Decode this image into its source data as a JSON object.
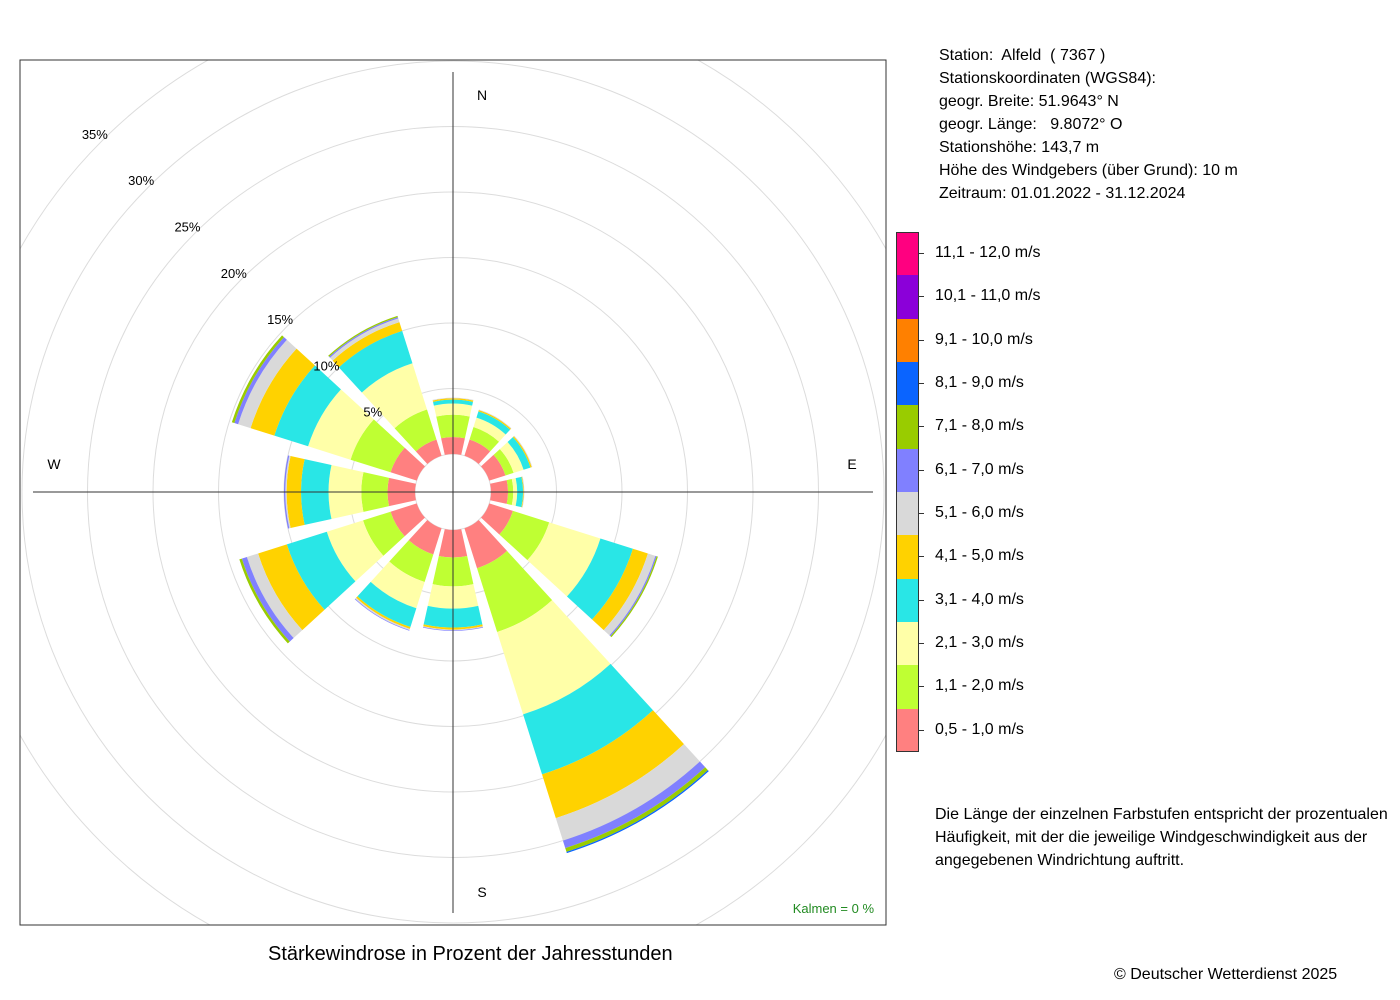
{
  "station_info": [
    "Station:  Alfeld  ( 7367 )",
    "Stationskoordinaten (WGS84):",
    "geogr. Breite: 51.9643° N",
    "geogr. Länge:   9.8072° O",
    "Stationshöhe: 143,7 m",
    "Höhe des Windgebers (über Grund): 10 m",
    "Zeitraum: 01.01.2022 - 31.12.2024"
  ],
  "legend_title": "",
  "legend": [
    {
      "label": "11,1 - 12,0 m/s",
      "color": "#ff0080"
    },
    {
      "label": "10,1 - 11,0 m/s",
      "color": "#8b00d9"
    },
    {
      "label": "9,1 - 10,0 m/s",
      "color": "#ff8000"
    },
    {
      "label": "8,1 - 9,0 m/s",
      "color": "#0a64ff"
    },
    {
      "label": "7,1 - 8,0 m/s",
      "color": "#99cc00"
    },
    {
      "label": "6,1 - 7,0 m/s",
      "color": "#8080ff"
    },
    {
      "label": "5,1 - 6,0 m/s",
      "color": "#d9d9d9"
    },
    {
      "label": "4,1 - 5,0 m/s",
      "color": "#ffd200"
    },
    {
      "label": "3,1 - 4,0 m/s",
      "color": "#29e6e6"
    },
    {
      "label": "2,1 - 3,0 m/s",
      "color": "#ffffa8"
    },
    {
      "label": "1,1 - 2,0 m/s",
      "color": "#bfff33"
    },
    {
      "label": "0,5 - 1,0 m/s",
      "color": "#ff8080"
    }
  ],
  "note": "Die Länge der einzelnen Farbstufen entspricht der prozentualen Häufigkeit, mit der die jeweilige Windgeschwindigkeit aus der angegebenen Windrichtung auftritt.",
  "calm_label": "Kalmen  =  0 %",
  "title": "Stärkewindrose in Prozent der Jahresstunden",
  "copyright": "© Deutscher Wetterdienst  2025",
  "chart_data": {
    "type": "windrose",
    "title": "Stärkewindrose in Prozent der Jahresstunden",
    "compass_labels": [
      "N",
      "E",
      "S",
      "W"
    ],
    "ring_labels": [
      "5%",
      "10%",
      "15%",
      "20%",
      "25%",
      "30%",
      "35%"
    ],
    "rings": [
      5,
      10,
      15,
      20,
      25,
      30,
      35
    ],
    "unit": "%",
    "calm_percent": 0,
    "speed_classes": [
      "0,5 - 1,0 m/s",
      "1,1 - 2,0 m/s",
      "2,1 - 3,0 m/s",
      "3,1 - 4,0 m/s",
      "4,1 - 5,0 m/s",
      "5,1 - 6,0 m/s",
      "6,1 - 7,0 m/s",
      "7,1 - 8,0 m/s",
      "8,1 - 9,0 m/s",
      "9,1 - 10,0 m/s",
      "10,1 - 11,0 m/s",
      "11,1 - 12,0 m/s"
    ],
    "colors": [
      "#ff8080",
      "#bfff33",
      "#ffffa8",
      "#29e6e6",
      "#ffd200",
      "#d9d9d9",
      "#8080ff",
      "#99cc00",
      "#0a64ff",
      "#ff8000",
      "#8b00d9",
      "#ff0080"
    ],
    "directions_deg": [
      0,
      30,
      60,
      90,
      120,
      150,
      180,
      210,
      240,
      270,
      300,
      330
    ],
    "cumulative_percent": [
      [
        1.3,
        3.0,
        3.85,
        4.15,
        4.25,
        4.3,
        4.3,
        4.3,
        4.3,
        4.3,
        4.3,
        4.3
      ],
      [
        1.3,
        2.3,
        3.05,
        3.55,
        3.65,
        3.7,
        3.7,
        3.7,
        3.7,
        3.7,
        3.7,
        3.7
      ],
      [
        1.3,
        1.95,
        2.75,
        3.3,
        3.4,
        3.45,
        3.45,
        3.45,
        3.45,
        3.45,
        3.45,
        3.45
      ],
      [
        1.3,
        1.7,
        2.0,
        2.45,
        2.5,
        2.55,
        2.55,
        2.55,
        2.55,
        2.55,
        2.55,
        2.55
      ],
      [
        1.9,
        4.8,
        8.9,
        11.5,
        12.7,
        13.3,
        13.4,
        13.5,
        13.5,
        13.5,
        13.5,
        13.5
      ],
      [
        3.2,
        8.3,
        14.9,
        19.7,
        23.2,
        25.0,
        25.6,
        25.9,
        26.0,
        26.0,
        26.0,
        26.0
      ],
      [
        2.1,
        4.3,
        6.0,
        7.45,
        7.6,
        7.65,
        7.7,
        7.7,
        7.7,
        7.7,
        7.7,
        7.7
      ],
      [
        2.1,
        4.3,
        6.4,
        7.9,
        8.05,
        8.15,
        8.2,
        8.2,
        8.2,
        8.2,
        8.2,
        8.2
      ],
      [
        2.1,
        4.3,
        7.2,
        10.4,
        12.7,
        13.6,
        14.0,
        14.2,
        14.2,
        14.2,
        14.2,
        14.2
      ],
      [
        2.1,
        4.1,
        6.6,
        8.7,
        9.8,
        9.9,
        10.0,
        10.0,
        10.0,
        10.0,
        10.0,
        10.0
      ],
      [
        2.1,
        5.3,
        8.7,
        11.4,
        13.3,
        14.3,
        14.6,
        14.8,
        14.8,
        14.8,
        14.8,
        14.8
      ],
      [
        1.3,
        3.7,
        7.4,
        10.0,
        10.7,
        11.0,
        11.1,
        11.2,
        11.2,
        11.2,
        11.2,
        11.2
      ]
    ],
    "sector_width_deg": 25,
    "rlim": [
      0,
      35
    ],
    "grid": true
  }
}
